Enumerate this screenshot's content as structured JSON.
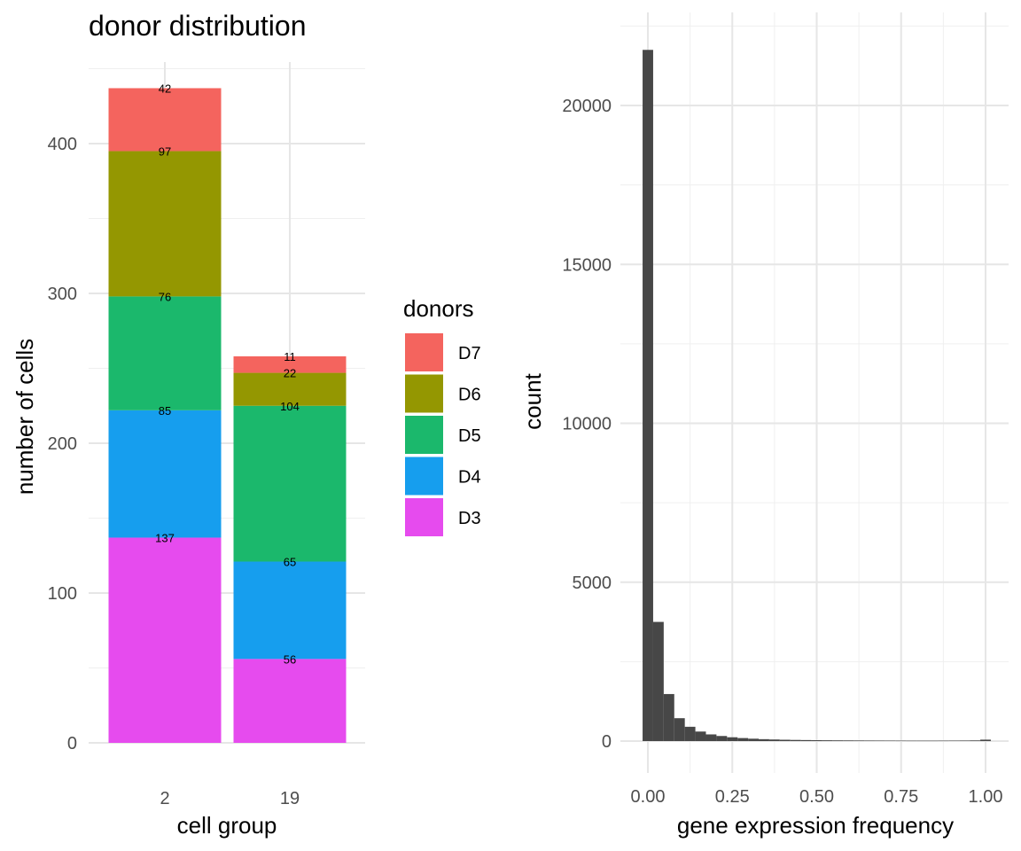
{
  "chart_data": [
    {
      "type": "bar",
      "stacked": true,
      "title": "donor distribution",
      "xlabel": "cell group",
      "ylabel": "number of cells",
      "categories": [
        "2",
        "19"
      ],
      "ylim": [
        0,
        450
      ],
      "yticks": [
        0,
        100,
        200,
        300,
        400
      ],
      "grid": true,
      "legend": {
        "title": "donors",
        "position": "right",
        "entries": [
          "D7",
          "D6",
          "D5",
          "D4",
          "D3"
        ]
      },
      "series": [
        {
          "name": "D3",
          "color": "#E64BEE",
          "values": [
            137,
            56
          ]
        },
        {
          "name": "D4",
          "color": "#169EEE",
          "values": [
            85,
            65
          ]
        },
        {
          "name": "D5",
          "color": "#1BB86C",
          "values": [
            76,
            104
          ]
        },
        {
          "name": "D6",
          "color": "#949701",
          "values": [
            97,
            22
          ]
        },
        {
          "name": "D7",
          "color": "#F4645E",
          "values": [
            42,
            11
          ]
        }
      ]
    },
    {
      "type": "bar",
      "subtype": "histogram",
      "title": "",
      "xlabel": "gene expression frequency",
      "ylabel": "count",
      "bar_color": "#474747",
      "xlim": [
        -0.04,
        1.06
      ],
      "ylim": [
        0,
        22000
      ],
      "xticks": [
        0,
        0.25,
        0.5,
        0.75,
        1
      ],
      "xtick_labels": [
        "0.00",
        "0.25",
        "0.50",
        "0.75",
        "1.00"
      ],
      "yticks": [
        0,
        5000,
        10000,
        15000,
        20000
      ],
      "ytick_labels": [
        "0",
        "5000",
        "10000",
        "15000",
        "20000"
      ],
      "grid": true,
      "bin_width": 0.03125,
      "bins": [
        {
          "x": 0.0,
          "count": 21750
        },
        {
          "x": 0.03125,
          "count": 3750
        },
        {
          "x": 0.0625,
          "count": 1480
        },
        {
          "x": 0.09375,
          "count": 720
        },
        {
          "x": 0.125,
          "count": 450
        },
        {
          "x": 0.15625,
          "count": 300
        },
        {
          "x": 0.1875,
          "count": 210
        },
        {
          "x": 0.21875,
          "count": 160
        },
        {
          "x": 0.25,
          "count": 120
        },
        {
          "x": 0.28125,
          "count": 95
        },
        {
          "x": 0.3125,
          "count": 75
        },
        {
          "x": 0.34375,
          "count": 60
        },
        {
          "x": 0.375,
          "count": 50
        },
        {
          "x": 0.40625,
          "count": 42
        },
        {
          "x": 0.4375,
          "count": 36
        },
        {
          "x": 0.46875,
          "count": 32
        },
        {
          "x": 0.5,
          "count": 28
        },
        {
          "x": 0.53125,
          "count": 25
        },
        {
          "x": 0.5625,
          "count": 22
        },
        {
          "x": 0.59375,
          "count": 20
        },
        {
          "x": 0.625,
          "count": 18
        },
        {
          "x": 0.65625,
          "count": 16
        },
        {
          "x": 0.6875,
          "count": 15
        },
        {
          "x": 0.71875,
          "count": 14
        },
        {
          "x": 0.75,
          "count": 13
        },
        {
          "x": 0.78125,
          "count": 12
        },
        {
          "x": 0.8125,
          "count": 12
        },
        {
          "x": 0.84375,
          "count": 12
        },
        {
          "x": 0.875,
          "count": 13
        },
        {
          "x": 0.90625,
          "count": 14
        },
        {
          "x": 0.9375,
          "count": 16
        },
        {
          "x": 0.96875,
          "count": 20
        },
        {
          "x": 1.0,
          "count": 45
        }
      ]
    }
  ]
}
